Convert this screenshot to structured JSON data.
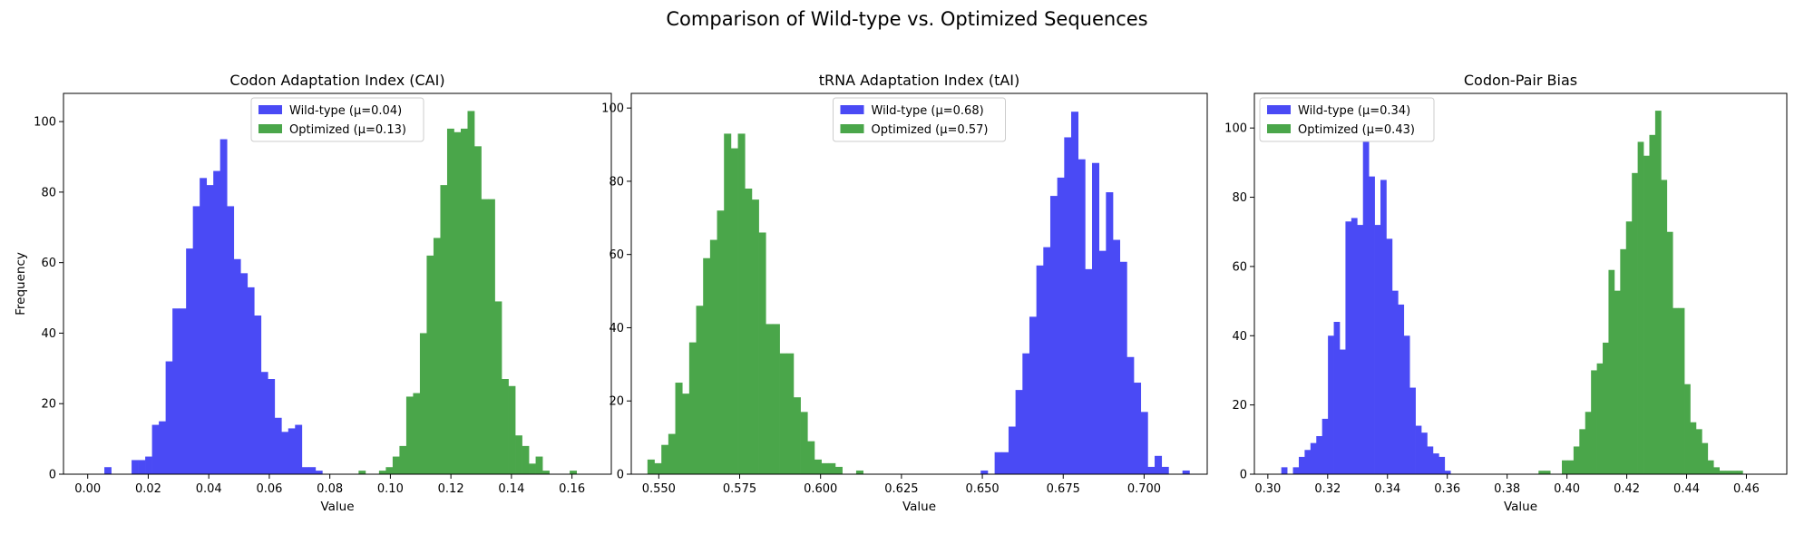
{
  "figure": {
    "title": "Comparison of Wild-type vs. Optimized Sequences"
  },
  "colors": {
    "wild_type": "#4a4af5",
    "optimized": "#4aa64a"
  },
  "chart_data": [
    {
      "type": "bar",
      "subtype": "histogram",
      "title": "Codon Adaptation Index (CAI)",
      "xlabel": "Value",
      "ylabel": "Frequency",
      "xlim": [
        -0.008,
        0.173
      ],
      "ylim": [
        0,
        108
      ],
      "xticks": [
        0.0,
        0.02,
        0.04,
        0.06,
        0.08,
        0.1,
        0.12,
        0.14,
        0.16
      ],
      "xtick_labels": [
        "0.00",
        "0.02",
        "0.04",
        "0.06",
        "0.08",
        "0.10",
        "0.12",
        "0.14",
        "0.16"
      ],
      "yticks": [
        0,
        20,
        40,
        60,
        80,
        100
      ],
      "ytick_labels": [
        "0",
        "20",
        "40",
        "60",
        "80",
        "100"
      ],
      "grid": false,
      "legend_position": "top-center",
      "series": [
        {
          "name": "Wild-type (μ=0.04)",
          "color": "#4a4af5",
          "bin_start": 0.0055,
          "bin_width": 0.00225,
          "values": [
            2,
            0,
            0,
            0,
            4,
            4,
            5,
            14,
            15,
            32,
            47,
            47,
            64,
            76,
            84,
            82,
            86,
            95,
            76,
            61,
            57,
            53,
            45,
            29,
            27,
            16,
            12,
            13,
            14,
            2,
            2,
            1
          ]
        },
        {
          "name": "Optimized (μ=0.13)",
          "color": "#4aa64a",
          "bin_start": 0.0895,
          "bin_width": 0.00225,
          "values": [
            1,
            0,
            0,
            1,
            2,
            5,
            8,
            22,
            23,
            40,
            62,
            67,
            82,
            98,
            97,
            98,
            103,
            93,
            78,
            78,
            49,
            27,
            25,
            11,
            8,
            3,
            5,
            1,
            0,
            0,
            0,
            1
          ]
        }
      ]
    },
    {
      "type": "bar",
      "subtype": "histogram",
      "title": "tRNA Adaptation Index (tAI)",
      "xlabel": "Value",
      "ylabel": "",
      "xlim": [
        0.5415,
        0.7195
      ],
      "ylim": [
        0,
        104
      ],
      "xticks": [
        0.55,
        0.575,
        0.6,
        0.625,
        0.65,
        0.675,
        0.7
      ],
      "xtick_labels": [
        "0.550",
        "0.575",
        "0.600",
        "0.625",
        "0.650",
        "0.675",
        "0.700"
      ],
      "yticks": [
        0,
        20,
        40,
        60,
        80,
        100
      ],
      "ytick_labels": [
        "0",
        "20",
        "40",
        "60",
        "80",
        "100"
      ],
      "grid": false,
      "legend_position": "top-center",
      "series": [
        {
          "name": "Wild-type (μ=0.68)",
          "color": "#4a4af5",
          "bin_start": 0.6495,
          "bin_width": 0.00215,
          "values": [
            1,
            0,
            6,
            6,
            13,
            23,
            33,
            43,
            57,
            62,
            76,
            81,
            92,
            99,
            86,
            56,
            85,
            61,
            77,
            64,
            58,
            32,
            25,
            17,
            2,
            5,
            2,
            0,
            0,
            1
          ]
        },
        {
          "name": "Optimized (μ=0.57)",
          "color": "#4aa64a",
          "bin_start": 0.5465,
          "bin_width": 0.00215,
          "values": [
            4,
            3,
            8,
            11,
            25,
            22,
            36,
            46,
            59,
            64,
            72,
            93,
            89,
            93,
            78,
            75,
            66,
            41,
            41,
            33,
            33,
            21,
            17,
            9,
            4,
            3,
            3,
            2,
            0,
            0,
            1
          ]
        }
      ]
    },
    {
      "type": "bar",
      "subtype": "histogram",
      "title": "Codon-Pair Bias",
      "xlabel": "Value",
      "ylabel": "",
      "xlim": [
        0.2955,
        0.4735
      ],
      "ylim": [
        0,
        110
      ],
      "xticks": [
        0.3,
        0.32,
        0.34,
        0.36,
        0.38,
        0.4,
        0.42,
        0.44,
        0.46
      ],
      "xtick_labels": [
        "0.30",
        "0.32",
        "0.34",
        "0.36",
        "0.38",
        "0.40",
        "0.42",
        "0.44",
        "0.46"
      ],
      "yticks": [
        0,
        20,
        40,
        60,
        80,
        100
      ],
      "ytick_labels": [
        "0",
        "20",
        "40",
        "60",
        "80",
        "100"
      ],
      "grid": false,
      "legend_position": "top-left",
      "series": [
        {
          "name": "Wild-type (μ=0.34)",
          "color": "#4a4af5",
          "bin_start": 0.3045,
          "bin_width": 0.00195,
          "values": [
            2,
            0,
            2,
            5,
            7,
            9,
            11,
            16,
            40,
            44,
            36,
            73,
            74,
            72,
            96,
            86,
            72,
            85,
            68,
            53,
            49,
            40,
            25,
            14,
            12,
            8,
            6,
            5,
            1
          ]
        },
        {
          "name": "Optimized (μ=0.43)",
          "color": "#4aa64a",
          "bin_start": 0.3905,
          "bin_width": 0.00195,
          "values": [
            1,
            1,
            0,
            0,
            4,
            4,
            8,
            13,
            18,
            30,
            32,
            38,
            59,
            53,
            65,
            73,
            87,
            96,
            92,
            98,
            105,
            85,
            70,
            48,
            48,
            26,
            15,
            13,
            9,
            4,
            2,
            1,
            1,
            1,
            1
          ]
        }
      ]
    }
  ]
}
